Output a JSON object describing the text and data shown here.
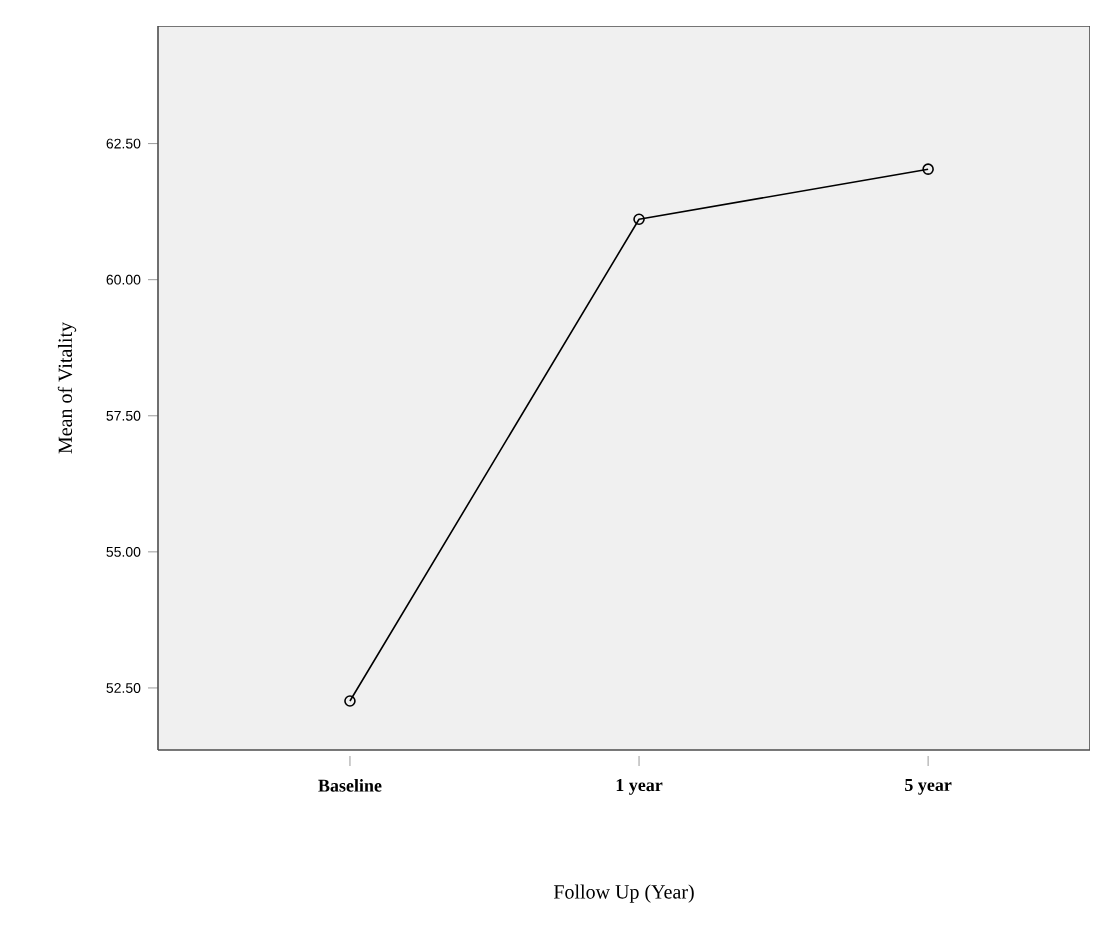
{
  "chart_data": {
    "type": "line",
    "xlabel": "Follow Up (Year)",
    "ylabel": "Mean of Vitality",
    "categories": [
      "Baseline",
      "1 year",
      "5 year"
    ],
    "series": [
      {
        "color": "#000000",
        "values": [
          52.26,
          61.11,
          62.03
        ]
      }
    ],
    "ylim": [
      51.36,
      64.66
    ],
    "yticks": [
      {
        "value": 52.5,
        "label": "52.50"
      },
      {
        "value": 55,
        "label": "55.00"
      },
      {
        "value": 57.5,
        "label": "57.50"
      },
      {
        "value": 60,
        "label": "60.00"
      },
      {
        "value": 62.5,
        "label": "62.50"
      }
    ],
    "grid": false,
    "marker": "circle",
    "line_style": "solid"
  }
}
